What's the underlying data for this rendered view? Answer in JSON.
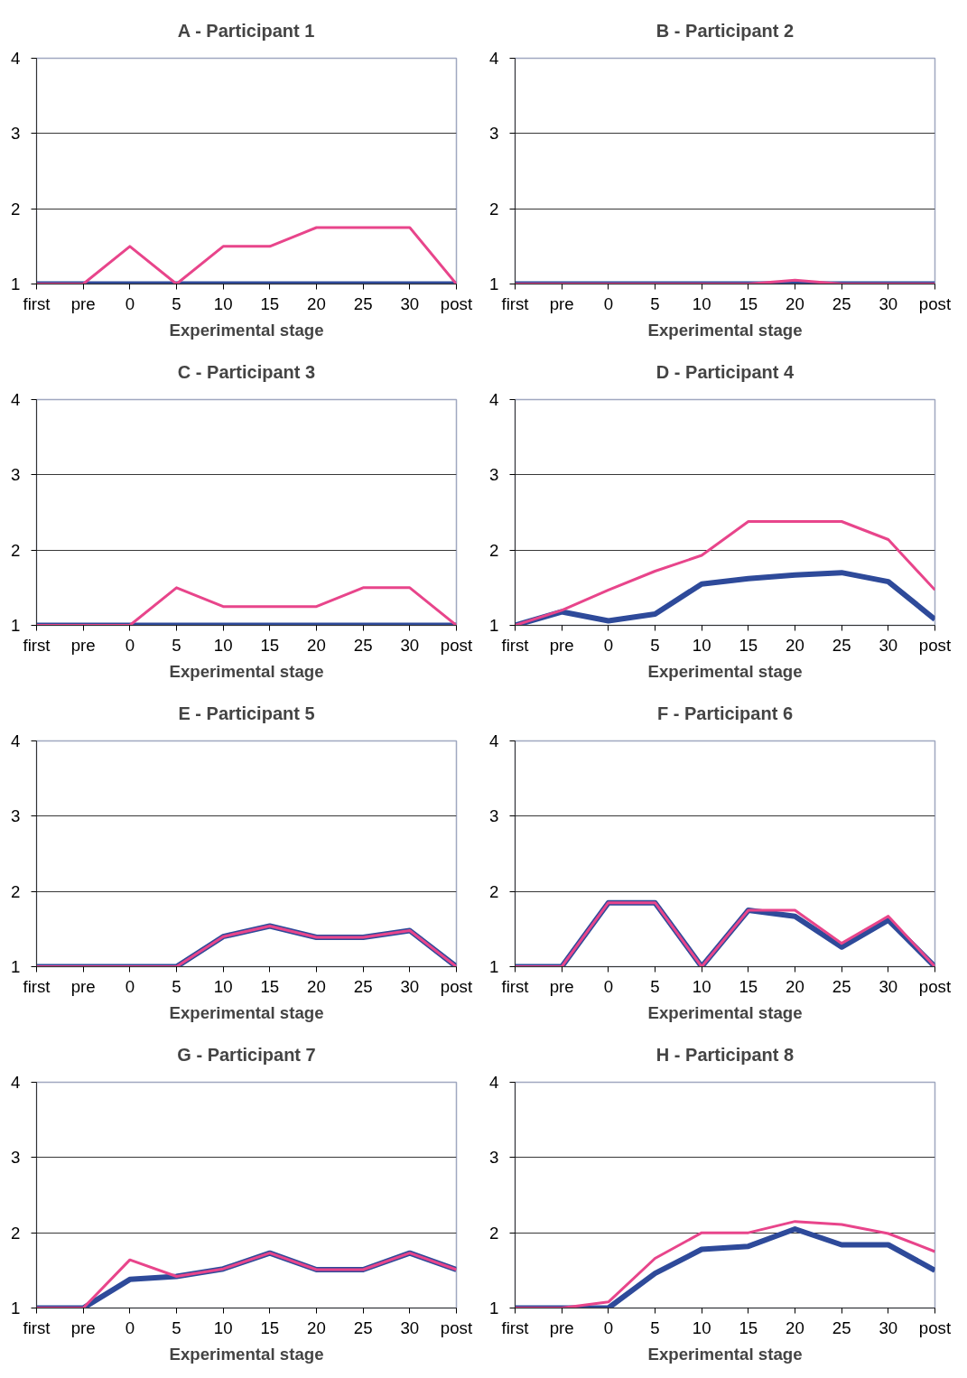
{
  "chart_data": [
    {
      "type": "line",
      "title": "A - Participant 1",
      "xlabel": "Experimental stage",
      "categories": [
        "first",
        "pre",
        "0",
        "5",
        "10",
        "15",
        "20",
        "25",
        "30",
        "post"
      ],
      "ylim": [
        1,
        4
      ],
      "yticks": [
        1,
        2,
        3,
        4
      ],
      "grid": "y",
      "series": [
        {
          "color": "#2e4a9a",
          "values": [
            1,
            1,
            1,
            1,
            1,
            1,
            1,
            1,
            1,
            1
          ]
        },
        {
          "color": "#e8458b",
          "values": [
            1,
            1,
            1.5,
            1,
            1.5,
            1.5,
            1.75,
            1.75,
            1.75,
            1
          ]
        }
      ]
    },
    {
      "type": "line",
      "title": "B - Participant 2",
      "xlabel": "Experimental stage",
      "categories": [
        "first",
        "pre",
        "0",
        "5",
        "10",
        "15",
        "20",
        "25",
        "30",
        "post"
      ],
      "ylim": [
        1,
        4
      ],
      "yticks": [
        1,
        2,
        3,
        4
      ],
      "grid": "y",
      "series": [
        {
          "color": "#2e4a9a",
          "values": [
            1,
            1,
            1,
            1,
            1,
            1,
            1,
            1,
            1,
            1
          ]
        },
        {
          "color": "#e8458b",
          "values": [
            1,
            1,
            1,
            1,
            1,
            1,
            1.05,
            1,
            1,
            1
          ]
        }
      ]
    },
    {
      "type": "line",
      "title": "C - Participant 3",
      "xlabel": "Experimental stage",
      "categories": [
        "first",
        "pre",
        "0",
        "5",
        "10",
        "15",
        "20",
        "25",
        "30",
        "post"
      ],
      "ylim": [
        1,
        4
      ],
      "yticks": [
        1,
        2,
        3,
        4
      ],
      "grid": "y",
      "series": [
        {
          "color": "#2e4a9a",
          "values": [
            1,
            1,
            1,
            1,
            1,
            1,
            1,
            1,
            1,
            1
          ]
        },
        {
          "color": "#e8458b",
          "values": [
            1,
            1,
            1,
            1.5,
            1.25,
            1.25,
            1.25,
            1.5,
            1.5,
            1
          ]
        }
      ]
    },
    {
      "type": "line",
      "title": "D - Participant 4",
      "xlabel": "Experimental stage",
      "categories": [
        "first",
        "pre",
        "0",
        "5",
        "10",
        "15",
        "20",
        "25",
        "30",
        "post"
      ],
      "ylim": [
        1,
        4
      ],
      "yticks": [
        1,
        2,
        3,
        4
      ],
      "grid": "y",
      "series": [
        {
          "color": "#2e4a9a",
          "values": [
            1,
            1.18,
            1.06,
            1.15,
            1.55,
            1.62,
            1.67,
            1.7,
            1.58,
            1.08
          ]
        },
        {
          "color": "#e8458b",
          "values": [
            1,
            1.2,
            1.47,
            1.72,
            1.93,
            2.38,
            2.38,
            2.38,
            2.14,
            1.47
          ]
        }
      ]
    },
    {
      "type": "line",
      "title": "E - Participant 5",
      "xlabel": "Experimental stage",
      "categories": [
        "first",
        "pre",
        "0",
        "5",
        "10",
        "15",
        "20",
        "25",
        "30",
        "post"
      ],
      "ylim": [
        1,
        4
      ],
      "yticks": [
        1,
        2,
        3,
        4
      ],
      "grid": "y",
      "series": [
        {
          "color": "#2e4a9a",
          "values": [
            1,
            1,
            1,
            1,
            1.4,
            1.54,
            1.39,
            1.39,
            1.48,
            1
          ]
        },
        {
          "color": "#e8458b",
          "values": [
            1,
            1,
            1,
            1,
            1.4,
            1.54,
            1.39,
            1.39,
            1.48,
            1
          ]
        }
      ]
    },
    {
      "type": "line",
      "title": "F - Participant 6",
      "xlabel": "Experimental stage",
      "categories": [
        "first",
        "pre",
        "0",
        "5",
        "10",
        "15",
        "20",
        "25",
        "30",
        "post"
      ],
      "ylim": [
        1,
        4
      ],
      "yticks": [
        1,
        2,
        3,
        4
      ],
      "grid": "y",
      "series": [
        {
          "color": "#2e4a9a",
          "values": [
            1,
            1,
            1.85,
            1.85,
            1,
            1.75,
            1.67,
            1.26,
            1.62,
            1
          ]
        },
        {
          "color": "#e8458b",
          "values": [
            1,
            1,
            1.85,
            1.85,
            1,
            1.75,
            1.75,
            1.31,
            1.67,
            1
          ]
        }
      ]
    },
    {
      "type": "line",
      "title": "G - Participant 7",
      "xlabel": "Experimental stage",
      "categories": [
        "first",
        "pre",
        "0",
        "5",
        "10",
        "15",
        "20",
        "25",
        "30",
        "post"
      ],
      "ylim": [
        1,
        4
      ],
      "yticks": [
        1,
        2,
        3,
        4
      ],
      "grid": "y",
      "series": [
        {
          "color": "#2e4a9a",
          "values": [
            1,
            1,
            1.38,
            1.42,
            1.52,
            1.73,
            1.51,
            1.51,
            1.73,
            1.51
          ]
        },
        {
          "color": "#e8458b",
          "values": [
            1,
            1,
            1.64,
            1.42,
            1.52,
            1.73,
            1.51,
            1.51,
            1.73,
            1.51
          ]
        }
      ]
    },
    {
      "type": "line",
      "title": "H - Participant 8",
      "xlabel": "Experimental stage",
      "categories": [
        "first",
        "pre",
        "0",
        "5",
        "10",
        "15",
        "20",
        "25",
        "30",
        "post"
      ],
      "ylim": [
        1,
        4
      ],
      "yticks": [
        1,
        2,
        3,
        4
      ],
      "grid": "y",
      "series": [
        {
          "color": "#2e4a9a",
          "values": [
            1,
            1,
            1,
            1.46,
            1.78,
            1.82,
            2.05,
            1.84,
            1.84,
            1.5
          ]
        },
        {
          "color": "#e8458b",
          "values": [
            1,
            1,
            1.08,
            1.66,
            2,
            2,
            2.15,
            2.11,
            1.99,
            1.75
          ]
        }
      ]
    }
  ]
}
